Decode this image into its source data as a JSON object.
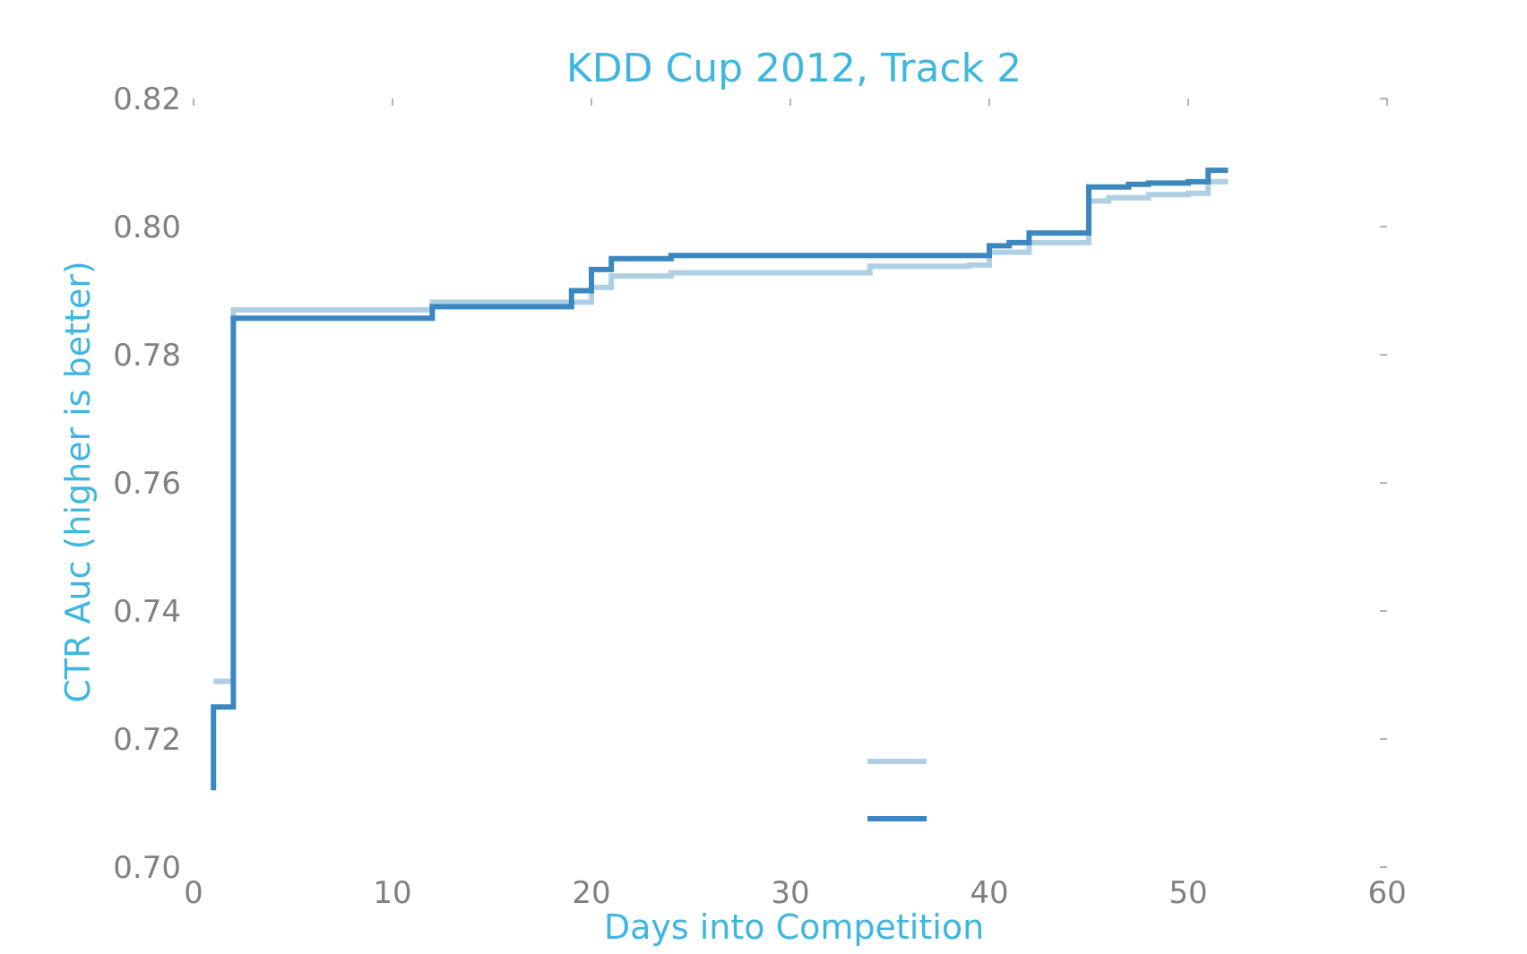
{
  "chart_data": {
    "type": "line",
    "title": "KDD Cup 2012, Track 2",
    "xlabel": "Days into Competition",
    "ylabel": "CTR Auc (higher is better)",
    "xlim": [
      0,
      60
    ],
    "ylim": [
      0.7,
      0.82
    ],
    "xticks": [
      0,
      10,
      20,
      30,
      40,
      50,
      60
    ],
    "yticks": [
      0.7,
      0.72,
      0.74,
      0.76,
      0.78,
      0.8,
      0.82
    ],
    "grid": false,
    "legend_position": "lower-center",
    "step": true,
    "series": [
      {
        "color": "#afcfe4",
        "x": [
          1,
          2,
          12,
          19,
          20,
          21,
          24,
          34,
          39,
          40,
          42,
          45,
          46,
          48,
          50,
          51,
          52
        ],
        "y": [
          0.729,
          0.787,
          0.7882,
          0.7882,
          0.7905,
          0.7923,
          0.7928,
          0.7938,
          0.794,
          0.796,
          0.7975,
          0.804,
          0.8045,
          0.805,
          0.8052,
          0.807,
          0.807
        ]
      },
      {
        "color": "#3b87bf",
        "x": [
          1,
          1,
          2,
          12,
          19,
          20,
          21,
          24,
          40,
          41,
          42,
          45,
          47,
          48,
          50,
          51,
          52
        ],
        "y": [
          0.712,
          0.725,
          0.7857,
          0.7875,
          0.79,
          0.7933,
          0.795,
          0.7955,
          0.797,
          0.7975,
          0.799,
          0.8062,
          0.8066,
          0.8068,
          0.807,
          0.8088,
          0.8088
        ]
      }
    ]
  }
}
